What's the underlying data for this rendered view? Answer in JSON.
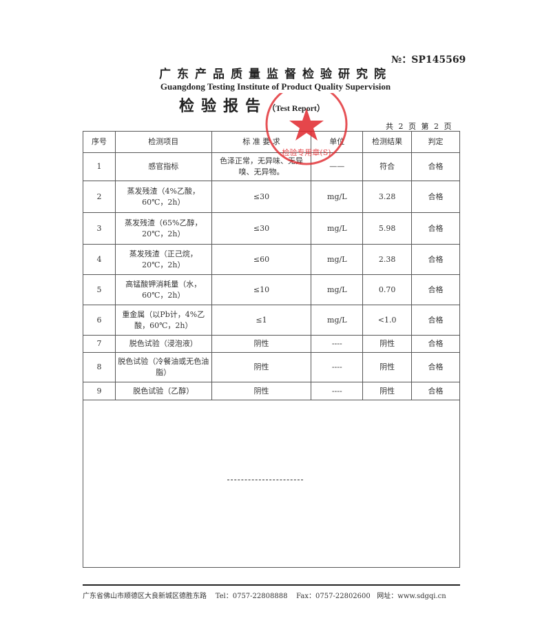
{
  "report_no": "№：SP145569",
  "institute_cn": "广东产品质量监督检验研究院",
  "institute_en": "Guangdong Testing Institute of Product Quality Supervision",
  "title_cn": "检验报告",
  "title_en": "（Test Report）",
  "page_info": "共 2 页 第 2 页",
  "headers": [
    "序号",
    "检测项目",
    "标 准 要 求",
    "单位",
    "检测结果",
    "判定"
  ],
  "rows": [
    [
      "1",
      "感官指标",
      "色泽正常，无异味、无异嗅、无异物。",
      "——",
      "符合",
      "合格"
    ],
    [
      "2",
      "蒸发残渣（4%乙酸，60℃，2h）",
      "≤30",
      "mg/L",
      "3.28",
      "合格"
    ],
    [
      "3",
      "蒸发残渣（65%乙醇，20℃，2h）",
      "≤30",
      "mg/L",
      "5.98",
      "合格"
    ],
    [
      "4",
      "蒸发残渣（正己烷，20℃，2h）",
      "≤60",
      "mg/L",
      "2.38",
      "合格"
    ],
    [
      "5",
      "高锰酸钾消耗量（水，60℃，2h）",
      "≤10",
      "mg/L",
      "0.70",
      "合格"
    ],
    [
      "6",
      "重金属（以Pb计，4%乙酸，60℃，2h）",
      "≤1",
      "mg/L",
      "<1.0",
      "合格"
    ],
    [
      "7",
      "脱色试验（浸泡液）",
      "阴性",
      "----",
      "阴性",
      "合格"
    ],
    [
      "8",
      "脱色试验（冷餐油或无色油脂）",
      "阴性",
      "----",
      "阴性",
      "合格"
    ],
    [
      "9",
      "脱色试验（乙醇）",
      "阴性",
      "----",
      "阴性",
      "合格"
    ]
  ],
  "stamp_text": "广东产品质量监督检验研究院 检验专用章(S)",
  "stamp_color": "#e0262b",
  "footer": "广东省佛山市顺德区大良新城区德胜东路    Tel：0757-22808888    Fax：0757-22802600   网址：www.sdgqi.cn"
}
